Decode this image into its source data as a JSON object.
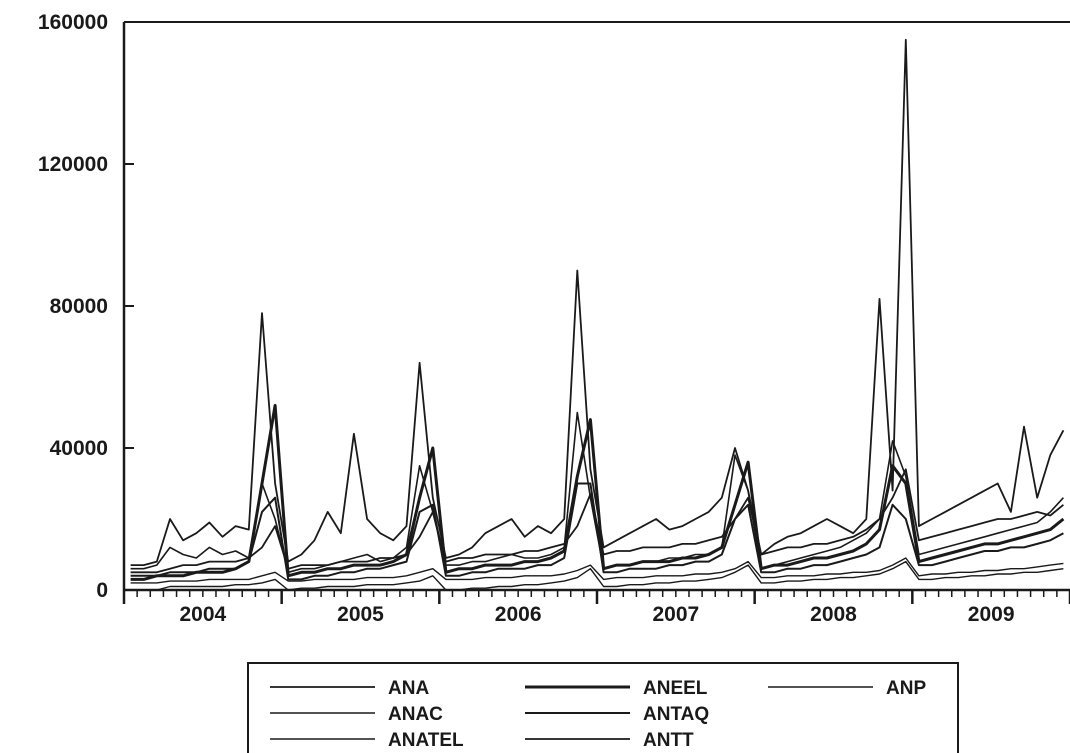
{
  "chart_data": {
    "type": "line",
    "title": "",
    "xlabel": "",
    "ylabel": "",
    "x_unit": "month",
    "x_start": "2004-01",
    "x_end": "2009-12",
    "year_labels": [
      "2004",
      "2005",
      "2006",
      "2007",
      "2008",
      "2009"
    ],
    "yticks": [
      0,
      40000,
      80000,
      120000,
      160000
    ],
    "ytick_labels": [
      "0",
      "40000",
      "80000",
      "120000",
      "160000"
    ],
    "ylim": [
      0,
      160000
    ],
    "grid": false,
    "legend_position": "bottom",
    "line_color": "#1a1a1a",
    "series": [
      {
        "name": "ANA",
        "values": [
          5000,
          5000,
          5000,
          6000,
          7000,
          7000,
          8000,
          8000,
          8000,
          9000,
          12000,
          18000,
          6000,
          7000,
          7000,
          7000,
          8000,
          8000,
          8000,
          9000,
          9000,
          10000,
          15000,
          22000,
          8000,
          9000,
          9000,
          10000,
          10000,
          10000,
          11000,
          11000,
          12000,
          13000,
          18000,
          27000,
          10000,
          11000,
          11000,
          12000,
          12000,
          12000,
          13000,
          13000,
          14000,
          15000,
          20000,
          26000,
          10000,
          11000,
          12000,
          12000,
          13000,
          13000,
          14000,
          15000,
          17000,
          20000,
          26000,
          34000,
          14000,
          15000,
          16000,
          17000,
          18000,
          19000,
          20000,
          20000,
          21000,
          22000,
          21000,
          24000
        ]
      },
      {
        "name": "ANEEL",
        "values": [
          3000,
          3000,
          4000,
          4000,
          4000,
          5000,
          5000,
          5000,
          6000,
          8000,
          30000,
          52000,
          4000,
          5000,
          5000,
          6000,
          6000,
          7000,
          7000,
          7000,
          8000,
          10000,
          26000,
          40000,
          5000,
          6000,
          6000,
          7000,
          7000,
          7000,
          8000,
          8000,
          9000,
          11000,
          32000,
          48000,
          6000,
          7000,
          7000,
          8000,
          8000,
          8000,
          9000,
          9000,
          10000,
          12000,
          24000,
          36000,
          6000,
          7000,
          7000,
          8000,
          9000,
          9000,
          10000,
          11000,
          13000,
          17000,
          35000,
          30000,
          8000,
          9000,
          10000,
          11000,
          12000,
          13000,
          13000,
          14000,
          15000,
          16000,
          17000,
          20000
        ]
      },
      {
        "name": "ANP",
        "values": [
          2000,
          2000,
          2000,
          2500,
          2500,
          2500,
          3000,
          3000,
          3000,
          3000,
          4000,
          5000,
          2500,
          2500,
          3000,
          3000,
          3000,
          3000,
          3500,
          3500,
          3500,
          4000,
          5000,
          6000,
          3000,
          3000,
          3000,
          3500,
          3500,
          3500,
          4000,
          4000,
          4000,
          4500,
          5500,
          7000,
          3000,
          3500,
          3500,
          3500,
          4000,
          4000,
          4000,
          4500,
          4500,
          5000,
          6000,
          8000,
          3500,
          3500,
          4000,
          4000,
          4000,
          4500,
          4500,
          5000,
          5000,
          5500,
          7000,
          9000,
          4000,
          4500,
          4500,
          5000,
          5000,
          5500,
          5500,
          6000,
          6000,
          6500,
          7000,
          7500
        ]
      },
      {
        "name": "ANAC",
        "values": [
          6000,
          6000,
          7000,
          12000,
          10000,
          9000,
          12000,
          10000,
          11000,
          9000,
          30000,
          20000,
          5000,
          6000,
          6000,
          7000,
          8000,
          9000,
          10000,
          8000,
          9000,
          12000,
          35000,
          22000,
          7000,
          7000,
          8000,
          8000,
          9000,
          10000,
          9000,
          9000,
          10000,
          12000,
          50000,
          26000,
          6000,
          7000,
          7000,
          8000,
          8000,
          9000,
          9000,
          10000,
          10000,
          12000,
          38000,
          28000,
          6000,
          7000,
          8000,
          9000,
          10000,
          11000,
          12000,
          14000,
          16000,
          20000,
          42000,
          32000,
          10000,
          11000,
          12000,
          13000,
          14000,
          15000,
          16000,
          17000,
          18000,
          19000,
          22000,
          26000
        ]
      },
      {
        "name": "ANTAQ",
        "values": [
          4000,
          4000,
          4000,
          5000,
          5000,
          5000,
          6000,
          6000,
          6000,
          8000,
          22000,
          26000,
          3000,
          3000,
          4000,
          4000,
          5000,
          5000,
          6000,
          6000,
          7000,
          8000,
          22000,
          24000,
          4000,
          4000,
          5000,
          5000,
          6000,
          6000,
          6000,
          7000,
          7000,
          9000,
          30000,
          30000,
          5000,
          5000,
          6000,
          6000,
          6000,
          7000,
          7000,
          8000,
          8000,
          10000,
          20000,
          24000,
          5000,
          5000,
          6000,
          6000,
          7000,
          7000,
          8000,
          9000,
          10000,
          12000,
          24000,
          20000,
          7000,
          7000,
          8000,
          9000,
          10000,
          11000,
          11000,
          12000,
          12000,
          13000,
          14000,
          16000
        ]
      },
      {
        "name": "ANATEL",
        "values": [
          0,
          0,
          0,
          1000,
          1000,
          1000,
          1000,
          1000,
          1500,
          1500,
          2000,
          3000,
          0,
          500,
          500,
          1000,
          1000,
          1000,
          1500,
          1500,
          1500,
          2000,
          2500,
          4000,
          0,
          0,
          500,
          500,
          1000,
          1000,
          1500,
          1500,
          2000,
          2500,
          3500,
          6000,
          1000,
          1000,
          1500,
          1500,
          2000,
          2000,
          2500,
          2500,
          3000,
          3500,
          5000,
          7000,
          2000,
          2000,
          2500,
          2500,
          3000,
          3000,
          3500,
          3500,
          4000,
          4500,
          6000,
          8000,
          3000,
          3000,
          3500,
          3500,
          4000,
          4000,
          4500,
          4500,
          5000,
          5000,
          5500,
          6000
        ]
      },
      {
        "name": "ANTT",
        "values": [
          7000,
          7000,
          8000,
          20000,
          14000,
          16000,
          19000,
          15000,
          18000,
          17000,
          78000,
          30000,
          8000,
          10000,
          14000,
          22000,
          16000,
          44000,
          20000,
          16000,
          14000,
          18000,
          64000,
          26000,
          9000,
          10000,
          12000,
          16000,
          18000,
          20000,
          15000,
          18000,
          16000,
          20000,
          90000,
          34000,
          12000,
          14000,
          16000,
          18000,
          20000,
          17000,
          18000,
          20000,
          22000,
          26000,
          40000,
          28000,
          10000,
          13000,
          15000,
          16000,
          18000,
          20000,
          18000,
          16000,
          20000,
          82000,
          28000,
          155000,
          18000,
          20000,
          22000,
          24000,
          26000,
          28000,
          30000,
          22000,
          46000,
          26000,
          38000,
          45000
        ]
      }
    ]
  }
}
